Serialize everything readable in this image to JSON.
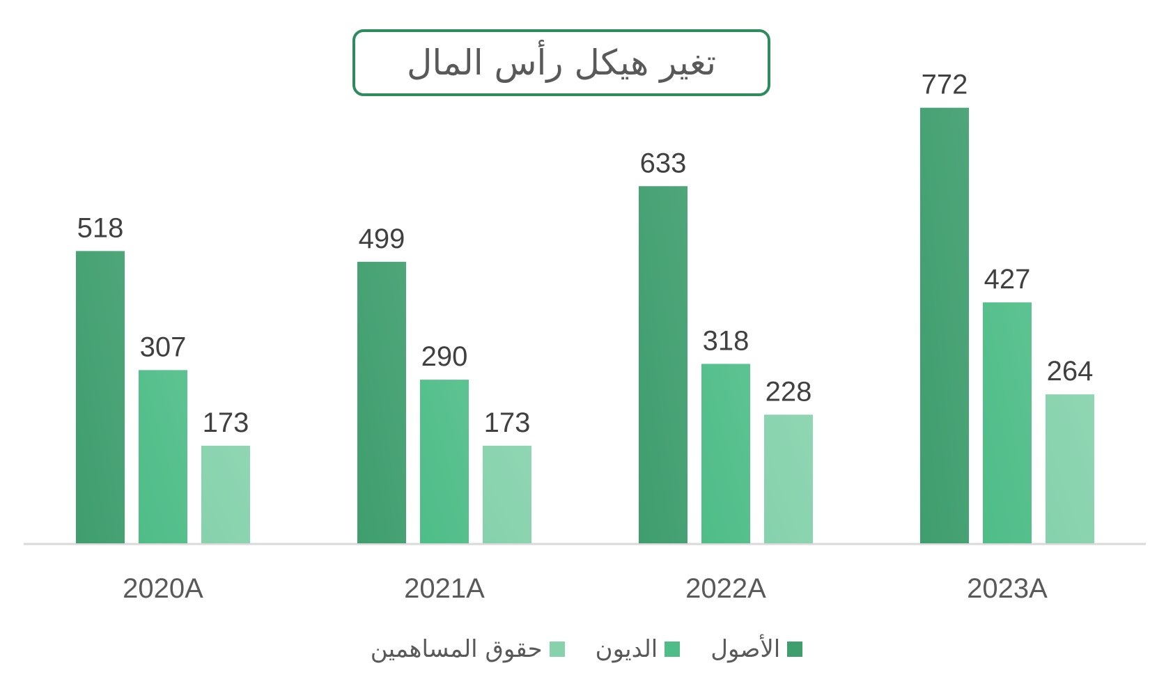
{
  "chart_data": {
    "type": "bar",
    "title": "تغير هيكل رأس المال",
    "categories": [
      "2020A",
      "2021A",
      "2022A",
      "2023A"
    ],
    "series": [
      {
        "name": "الأصول",
        "color": "#3f9e6e",
        "values": [
          518,
          499,
          633,
          772
        ]
      },
      {
        "name": "الديون",
        "color": "#4fbd88",
        "values": [
          307,
          290,
          318,
          427
        ]
      },
      {
        "name": "حقوق المساهمين",
        "color": "#86d2ad",
        "values": [
          173,
          173,
          228,
          264
        ]
      }
    ],
    "ylim": [
      0,
      800
    ],
    "grid": false,
    "legend_position": "bottom",
    "data_labels": true
  }
}
